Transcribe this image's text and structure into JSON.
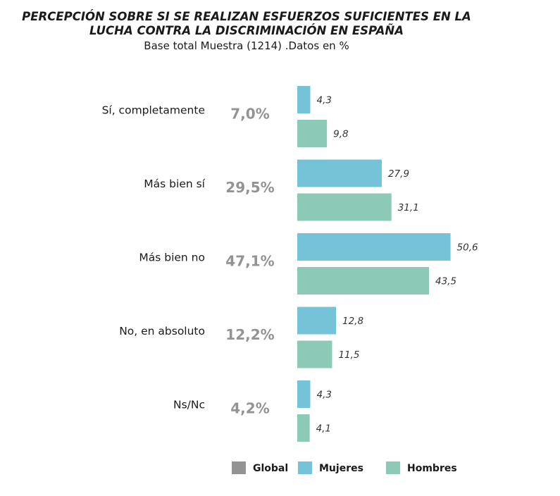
{
  "chart_data": {
    "type": "bar",
    "title_line1": "PERCEPCIÓN SOBRE SI SE REALIZAN ESFUERZOS SUFICIENTES EN LA",
    "title_line2": "LUCHA CONTRA LA DISCRIMINACIÓN EN ESPAÑA",
    "subtitle": "Base total Muestra (1214) .Datos en %",
    "orientation": "horizontal",
    "categories": [
      "Sí, completamente",
      "Más bien sí",
      "Más bien no",
      "No, en absoluto",
      "Ns/Nc"
    ],
    "global_labels": [
      "7,0%",
      "29,5%",
      "47,1%",
      "12,2%",
      "4,2%"
    ],
    "series": [
      {
        "name": "Mujeres",
        "color": "#75c3d8",
        "values": [
          4.3,
          27.9,
          50.6,
          12.8,
          4.3
        ],
        "labels": [
          "4,3",
          "27,9",
          "50,6",
          "12,8",
          "4,3"
        ]
      },
      {
        "name": "Hombres",
        "color": "#8cc9b7",
        "values": [
          9.8,
          31.1,
          43.5,
          11.5,
          4.1
        ],
        "labels": [
          "9,8",
          "31,1",
          "43,5",
          "11,5",
          "4,1"
        ]
      }
    ],
    "legend": {
      "placement": "bottom",
      "items": [
        {
          "name": "Global",
          "color": "#939393"
        },
        {
          "name": "Mujeres",
          "color": "#75c3d8"
        },
        {
          "name": "Hombres",
          "color": "#8cc9b7"
        }
      ]
    },
    "grid": false
  }
}
